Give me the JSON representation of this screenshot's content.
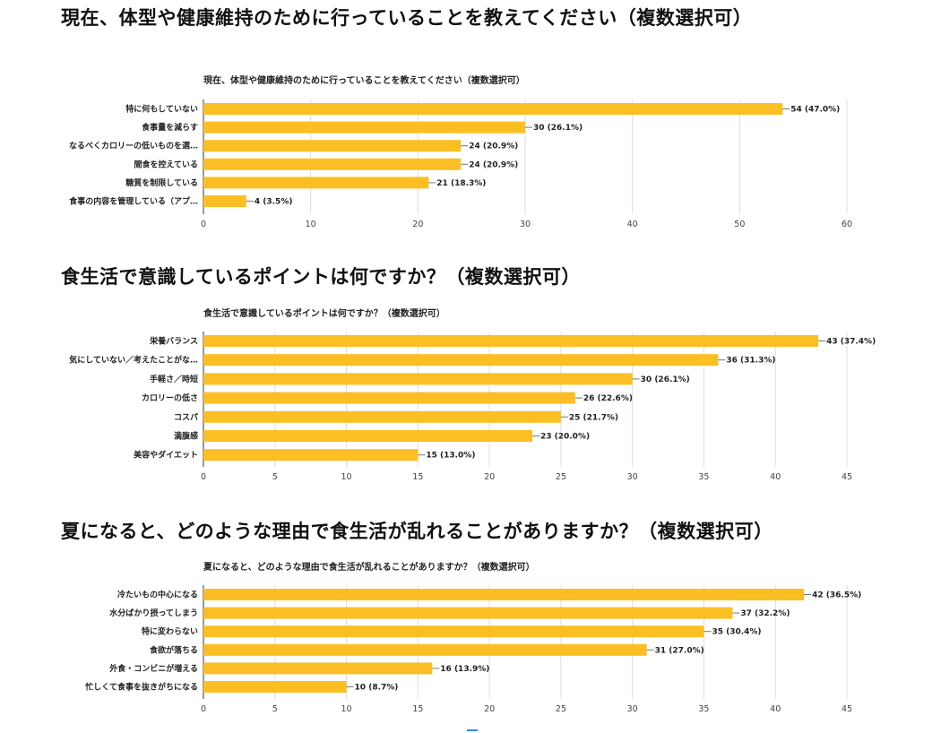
{
  "headings": [
    "現在、体型や健康維持のために行っていることを教えてください（複数選択可）",
    "食生活で意識しているポイントは何ですか？（複数選択可）",
    "夏になると、どのような理由で食生活が乱れることがありますか？（複数選択可）"
  ],
  "colors": {
    "bar": "#fbbf24",
    "grid": "#dcdcdc"
  },
  "chart_data": [
    {
      "type": "bar",
      "orientation": "horizontal",
      "title": "現在、体型や健康維持のために行っていることを教えてください（複数選択可）",
      "categories": [
        "特に何もしていない",
        "食事量を減らす",
        "なるべくカロリーの低いものを選…",
        "間食を控えている",
        "糖質を制限している",
        "食事の内容を管理している（アプ…"
      ],
      "values": [
        54,
        30,
        24,
        24,
        21,
        4
      ],
      "data_labels": [
        "54 (47.0%)",
        "30 (26.1%)",
        "24 (20.9%)",
        "24 (20.9%)",
        "21 (18.3%)",
        "4 (3.5%)"
      ],
      "xlim": [
        0,
        60
      ],
      "xticks": [
        0,
        10,
        20,
        30,
        40,
        50,
        60
      ],
      "grid": true
    },
    {
      "type": "bar",
      "orientation": "horizontal",
      "title": "食生活で意識しているポイントは何ですか？（複数選択可）",
      "categories": [
        "栄養バランス",
        "気にしていない／考えたことがな…",
        "手軽さ／時短",
        "カロリーの低さ",
        "コスパ",
        "満腹感",
        "美容やダイエット"
      ],
      "values": [
        43,
        36,
        30,
        26,
        25,
        23,
        15
      ],
      "data_labels": [
        "43 (37.4%)",
        "36 (31.3%)",
        "30 (26.1%)",
        "26 (22.6%)",
        "25 (21.7%)",
        "23 (20.0%)",
        "15 (13.0%)"
      ],
      "xlim": [
        0,
        45
      ],
      "xticks": [
        0,
        5,
        10,
        15,
        20,
        25,
        30,
        35,
        40,
        45
      ],
      "grid": true
    },
    {
      "type": "bar",
      "orientation": "horizontal",
      "title": "夏になると、どのような理由で食生活が乱れることがありますか？（複数選択可）",
      "categories": [
        "冷たいもの中心になる",
        "水分ばかり摂ってしまう",
        "特に変わらない",
        "食欲が落ちる",
        "外食・コンビニが増える",
        "忙しくて食事を抜きがちになる"
      ],
      "values": [
        42,
        37,
        35,
        31,
        16,
        10
      ],
      "data_labels": [
        "42 (36.5%)",
        "37 (32.2%)",
        "35 (30.4%)",
        "31 (27.0%)",
        "16 (13.9%)",
        "10 (8.7%)"
      ],
      "xlim": [
        0,
        45
      ],
      "xticks": [
        0,
        5,
        10,
        15,
        20,
        25,
        30,
        35,
        40,
        45
      ],
      "grid": true
    }
  ]
}
